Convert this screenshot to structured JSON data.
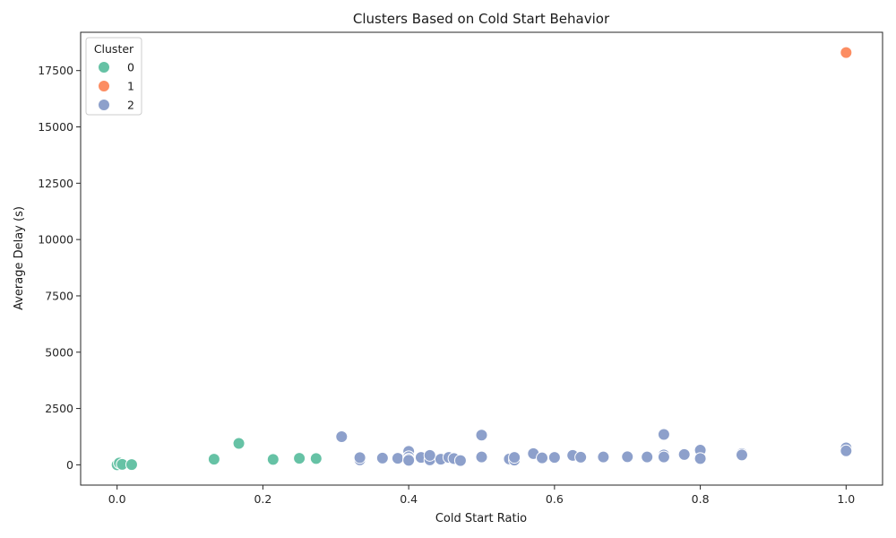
{
  "chart_data": {
    "type": "scatter",
    "title": "Clusters Based on Cold Start Behavior",
    "xlabel": "Cold Start Ratio",
    "ylabel": "Average Delay (s)",
    "xlim": [
      -0.05,
      1.05
    ],
    "ylim": [
      -900,
      19200
    ],
    "xticks": [
      0.0,
      0.2,
      0.4,
      0.6,
      0.8,
      1.0
    ],
    "xtick_labels": [
      "0.0",
      "0.2",
      "0.4",
      "0.6",
      "0.8",
      "1.0"
    ],
    "yticks": [
      0,
      2500,
      5000,
      7500,
      10000,
      12500,
      15000,
      17500
    ],
    "ytick_labels": [
      "0",
      "2500",
      "5000",
      "7500",
      "10000",
      "12500",
      "15000",
      "17500"
    ],
    "grid": false,
    "legend": {
      "title": "Cluster",
      "placement": "top-left"
    },
    "series": [
      {
        "name": "0",
        "color": "#66c2a5",
        "points": [
          [
            0.0,
            0
          ],
          [
            0.003,
            80
          ],
          [
            0.007,
            20
          ],
          [
            0.02,
            10
          ],
          [
            0.133,
            250
          ],
          [
            0.167,
            950
          ],
          [
            0.214,
            240
          ],
          [
            0.25,
            290
          ],
          [
            0.273,
            280
          ]
        ]
      },
      {
        "name": "1",
        "color": "#fc8d62",
        "points": [
          [
            1.0,
            18300
          ]
        ]
      },
      {
        "name": "2",
        "color": "#8da0cb",
        "points": [
          [
            0.308,
            1250
          ],
          [
            0.333,
            220
          ],
          [
            0.333,
            320
          ],
          [
            0.364,
            300
          ],
          [
            0.385,
            290
          ],
          [
            0.4,
            600
          ],
          [
            0.4,
            360
          ],
          [
            0.4,
            250
          ],
          [
            0.4,
            200
          ],
          [
            0.417,
            330
          ],
          [
            0.429,
            220
          ],
          [
            0.429,
            420
          ],
          [
            0.444,
            250
          ],
          [
            0.455,
            330
          ],
          [
            0.462,
            280
          ],
          [
            0.471,
            190
          ],
          [
            0.5,
            1320
          ],
          [
            0.5,
            350
          ],
          [
            0.538,
            260
          ],
          [
            0.545,
            210
          ],
          [
            0.545,
            330
          ],
          [
            0.571,
            500
          ],
          [
            0.583,
            310
          ],
          [
            0.6,
            330
          ],
          [
            0.625,
            420
          ],
          [
            0.636,
            340
          ],
          [
            0.667,
            350
          ],
          [
            0.7,
            360
          ],
          [
            0.727,
            350
          ],
          [
            0.75,
            1350
          ],
          [
            0.75,
            440
          ],
          [
            0.75,
            350
          ],
          [
            0.778,
            460
          ],
          [
            0.8,
            650
          ],
          [
            0.8,
            280
          ],
          [
            0.857,
            500
          ],
          [
            0.857,
            440
          ],
          [
            1.0,
            750
          ],
          [
            1.0,
            620
          ]
        ]
      }
    ]
  }
}
